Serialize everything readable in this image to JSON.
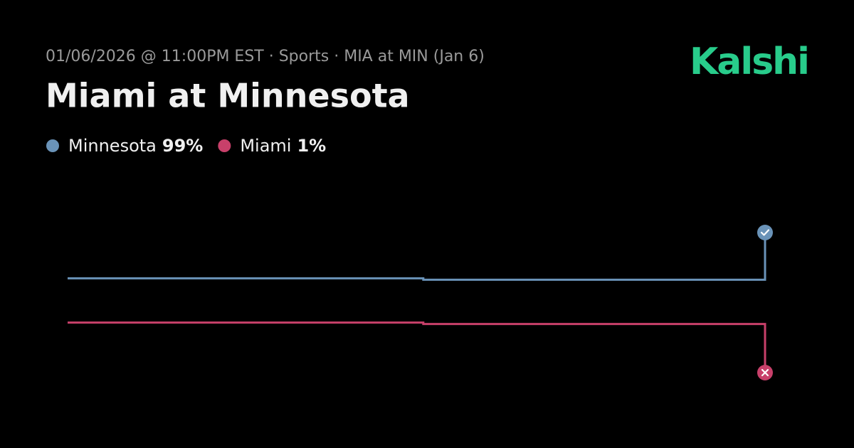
{
  "header": {
    "subtitle": "01/06/2026 @ 11:00PM EST · Sports · MIA at MIN (Jan 6)",
    "brand": "Kalshi"
  },
  "chart_data": {
    "type": "line",
    "title": "Miami at Minnesota",
    "x": [
      0,
      51,
      51,
      100,
      100
    ],
    "xlim": [
      0,
      100
    ],
    "ylim": [
      0,
      100
    ],
    "series": [
      {
        "name": "Minnesota",
        "color": "#6a93b8",
        "values": [
          67,
          67,
          66,
          66,
          99
        ],
        "value_labels": [
          null,
          null,
          null,
          null,
          "99%"
        ]
      },
      {
        "name": "Miami",
        "color": "#c8406a",
        "values": [
          36,
          36,
          35,
          35,
          1
        ],
        "value_labels": [
          null,
          null,
          null,
          null,
          "1%"
        ]
      }
    ]
  }
}
